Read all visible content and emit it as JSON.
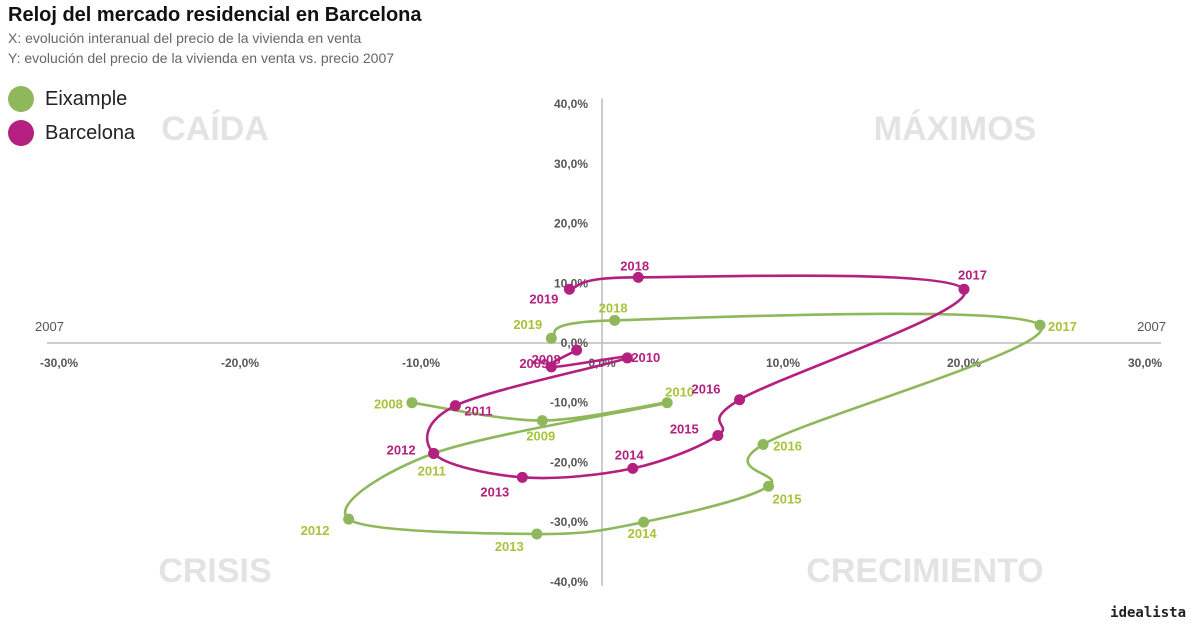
{
  "header": {
    "title": "Reloj del mercado residencial en Barcelona",
    "subtitle_x": "X: evolución interanual del precio de la vivienda en venta",
    "subtitle_y": "Y: evolución del precio de la vivienda en venta vs. precio 2007"
  },
  "brand": "idealista",
  "chart_data": {
    "type": "scatter",
    "xlim": [
      -30,
      30
    ],
    "ylim": [
      -40,
      40
    ],
    "x_ticks": [
      -30,
      -20,
      -10,
      0,
      10,
      20,
      30
    ],
    "y_ticks": [
      40,
      30,
      20,
      10,
      0,
      -10,
      -20,
      -30,
      -40
    ],
    "tick_suffix": "%",
    "axis_end_labels": {
      "left": "2007",
      "right": "2007"
    },
    "quadrants": {
      "top_left": "CAÍDA",
      "top_right": "MÁXIMOS",
      "bottom_left": "CRISIS",
      "bottom_right": "CRECIMIENTO"
    },
    "legend_position": "top-left",
    "series": [
      {
        "name": "Eixample",
        "color": "#8fb85c",
        "label_color": "#a6c43a",
        "points": [
          {
            "year": "2008",
            "x": -10.5,
            "y": -10.0
          },
          {
            "year": "2009",
            "x": -3.3,
            "y": -13.0
          },
          {
            "year": "2010",
            "x": 3.6,
            "y": -10.0
          },
          {
            "year": "2011",
            "x": -9.3,
            "y": -18.5
          },
          {
            "year": "2012",
            "x": -14.0,
            "y": -29.5
          },
          {
            "year": "2013",
            "x": -3.6,
            "y": -32.0
          },
          {
            "year": "2014",
            "x": 2.3,
            "y": -30.0
          },
          {
            "year": "2015",
            "x": 9.2,
            "y": -24.0
          },
          {
            "year": "2016",
            "x": 8.9,
            "y": -17.0
          },
          {
            "year": "2017",
            "x": 24.2,
            "y": 3.0
          },
          {
            "year": "2018",
            "x": 0.7,
            "y": 3.8
          },
          {
            "year": "2019",
            "x": -2.8,
            "y": 0.8
          }
        ]
      },
      {
        "name": "Barcelona",
        "color": "#b3207f",
        "label_color": "#b3207f",
        "points": [
          {
            "year": "2008",
            "x": -1.4,
            "y": -1.2
          },
          {
            "year": "2009",
            "x": -2.8,
            "y": -4.0
          },
          {
            "year": "2010",
            "x": 1.4,
            "y": -2.5
          },
          {
            "year": "2011",
            "x": -8.1,
            "y": -10.5
          },
          {
            "year": "2012",
            "x": -9.3,
            "y": -18.5
          },
          {
            "year": "2013",
            "x": -4.4,
            "y": -22.5
          },
          {
            "year": "2014",
            "x": 1.7,
            "y": -21.0
          },
          {
            "year": "2015",
            "x": 6.4,
            "y": -15.5
          },
          {
            "year": "2016",
            "x": 7.6,
            "y": -9.5
          },
          {
            "year": "2017",
            "x": 20.0,
            "y": 9.0
          },
          {
            "year": "2018",
            "x": 2.0,
            "y": 11.0
          },
          {
            "year": "2019",
            "x": -1.8,
            "y": 9.0
          }
        ]
      }
    ]
  }
}
